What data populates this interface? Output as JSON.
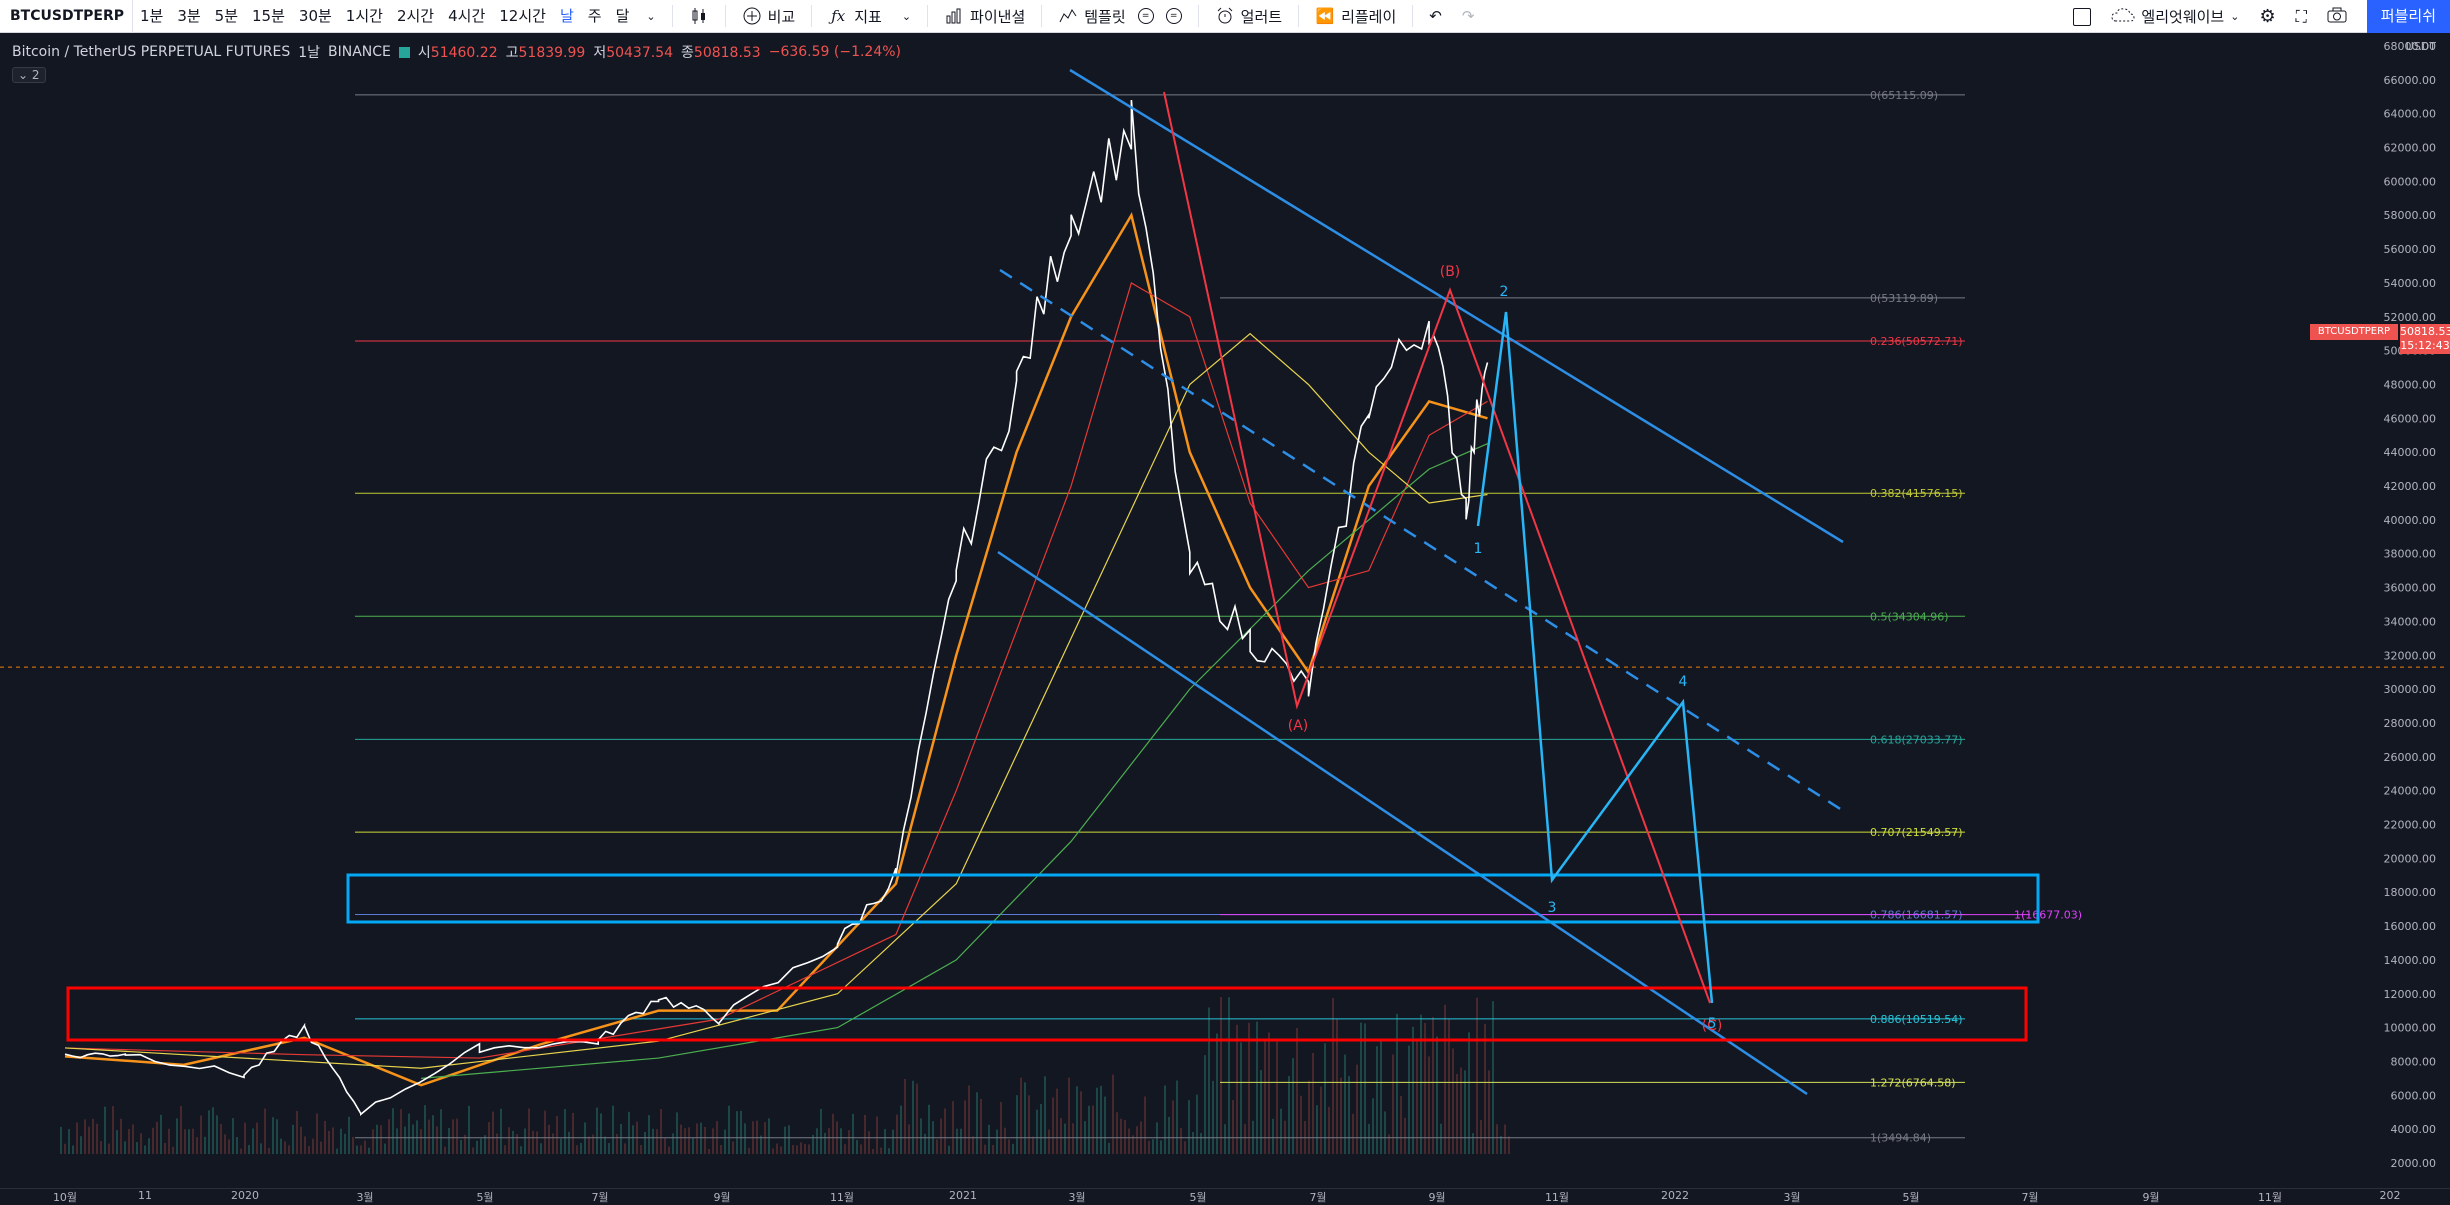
{
  "toolbar": {
    "symbol": "BTCUSDTPERP",
    "intervals": [
      "1분",
      "3분",
      "5분",
      "15분",
      "30분",
      "1시간",
      "2시간",
      "4시간",
      "12시간",
      "날",
      "주",
      "달"
    ],
    "active_interval": "날",
    "compare_label": "비교",
    "indicators_label": "지표",
    "financials_label": "파이낸셜",
    "templates_label": "템플릿",
    "alert_label": "얼러트",
    "replay_label": "리플레이",
    "layout_label": "엘리엇웨이브",
    "publish_label": "퍼블리쉬"
  },
  "legend": {
    "title": "Bitcoin / TetherUS PERPETUAL FUTURES",
    "interval": "1날",
    "exchange": "BINANCE",
    "open_label": "시",
    "open": "51460.22",
    "high_label": "고",
    "high": "51839.99",
    "low_label": "저",
    "low": "50437.54",
    "close_label": "종",
    "close": "50818.53",
    "change": "−636.59 (−1.24%)",
    "collapse": "2"
  },
  "price_axis": {
    "unit": "USDT",
    "last_price": "50818.53",
    "countdown": "15:12:43",
    "symbol_tag": "BTCUSDTPERP"
  },
  "chart_data": {
    "type": "line",
    "title": "Bitcoin / TetherUS PERPETUAL FUTURES",
    "ylabel": "USDT",
    "ylim": [
      0,
      68000
    ],
    "y_ticks": [
      2000,
      4000,
      6000,
      8000,
      10000,
      12000,
      14000,
      16000,
      18000,
      20000,
      22000,
      24000,
      26000,
      28000,
      30000,
      32000,
      34000,
      36000,
      38000,
      40000,
      42000,
      44000,
      46000,
      48000,
      50000,
      52000,
      54000,
      56000,
      58000,
      60000,
      62000,
      64000,
      66000,
      68000
    ],
    "x_ticks": [
      "10월",
      "11",
      "2020",
      "3월",
      "5월",
      "7월",
      "9월",
      "11월",
      "2021",
      "3월",
      "5월",
      "7월",
      "9월",
      "11월",
      "2022",
      "3월",
      "5월",
      "7월",
      "9월",
      "11월",
      "202"
    ],
    "grid": false,
    "series": [
      {
        "values": [
          {
            "t": "2019-10",
            "p": 8300
          },
          {
            "t": "2019-11",
            "p": 8500
          },
          {
            "t": "2020-01",
            "p": 7200
          },
          {
            "t": "2020-02",
            "p": 10000
          },
          {
            "t": "2020-03",
            "p": 5000
          },
          {
            "t": "2020-05",
            "p": 8800
          },
          {
            "t": "2020-07",
            "p": 9200
          },
          {
            "t": "2020-08",
            "p": 11800
          },
          {
            "t": "2020-09",
            "p": 10500
          },
          {
            "t": "2020-11",
            "p": 15000
          },
          {
            "t": "2020-12",
            "p": 19000
          },
          {
            "t": "2021-01",
            "p": 37000
          },
          {
            "t": "2021-02",
            "p": 48000
          },
          {
            "t": "2021-03",
            "p": 58000
          },
          {
            "t": "2021-04",
            "p": 63000
          },
          {
            "t": "2021-05",
            "p": 37000
          },
          {
            "t": "2021-06",
            "p": 33000
          },
          {
            "t": "2021-07",
            "p": 30000
          },
          {
            "t": "2021-08",
            "p": 47000
          },
          {
            "t": "2021-09",
            "p": 52000
          },
          {
            "t": "2021-09-20",
            "p": 41000
          },
          {
            "t": "2021-10",
            "p": 50800
          }
        ]
      }
    ],
    "fib_levels": [
      {
        "label": "0(65115.09)",
        "value": 65115.09,
        "color": "#787b86"
      },
      {
        "label": "0(53119.89)",
        "value": 53119.89,
        "color": "#787b86"
      },
      {
        "label": "0.236(50572.71)",
        "value": 50572.71,
        "color": "#f23645"
      },
      {
        "label": "0.382(41576.15)",
        "value": 41576.15,
        "color": "#c0ca33"
      },
      {
        "label": "0.5(34304.96)",
        "value": 34304.96,
        "color": "#4caf50"
      },
      {
        "label": "0.618(27033.77)",
        "value": 27033.77,
        "color": "#26a69a"
      },
      {
        "label": "0.707(21549.57)",
        "value": 21549.57,
        "color": "#cddc39"
      },
      {
        "label": "0.786(16681.57)",
        "value": 16681.57,
        "color": "#5d7bd6"
      },
      {
        "label": "1(16677.03)",
        "value": 16677.03,
        "color": "#e040fb"
      },
      {
        "label": "0.886(10519.54)",
        "value": 10519.54,
        "color": "#26c6da"
      },
      {
        "label": "1.272(6764.58)",
        "value": 6764.58,
        "color": "#d4e157"
      },
      {
        "label": "1(3494.84)",
        "value": 3494.84,
        "color": "#787b86"
      }
    ],
    "wave_labels_red": [
      "(A)",
      "(B)",
      "(C)"
    ],
    "wave_labels_blue": [
      "1",
      "2",
      "3",
      "4",
      "5"
    ],
    "tick_labels": [
      "2000.00",
      "4000.00",
      "6000.00",
      "8000.00",
      "10000.00",
      "12000.00",
      "14000.00",
      "16000.00",
      "18000.00",
      "20000.00",
      "22000.00",
      "24000.00",
      "26000.00",
      "28000.00",
      "30000.00",
      "32000.00",
      "34000.00",
      "36000.00",
      "38000.00",
      "40000.00",
      "42000.00",
      "44000.00",
      "46000.00",
      "48000.00",
      "50000.00",
      "52000.00",
      "54000.00",
      "56000.00",
      "58000.00",
      "60000.00",
      "62000.00",
      "64000.00",
      "66000.00",
      "68000.00"
    ]
  },
  "colors": {
    "bg": "#131722",
    "price_line": "#ffffff",
    "ma_orange": "#f7931a",
    "ma_red": "#e53935",
    "ma_yellow": "#e8d44d",
    "ma_green": "#4caf50",
    "channel": "#2d8ee6",
    "wave_red": "#f23645",
    "wave_blue": "#29b6f6",
    "box_red": "#ff0000",
    "box_blue": "#03a9f4"
  }
}
